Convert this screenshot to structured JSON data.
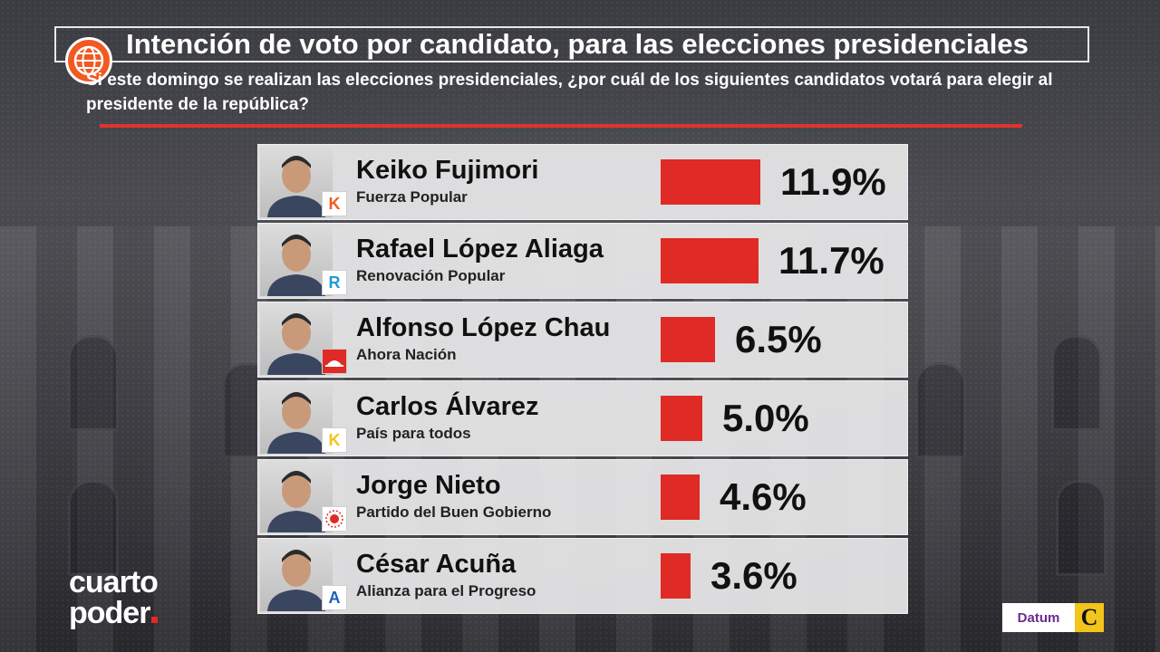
{
  "header": {
    "title": "Intención de voto por candidato, para las elecciones presidenciales",
    "question": "Si este domingo se realizan las elecciones presidenciales, ¿por cuál de los siguientes candidatos votará para elegir al presidente de la república?"
  },
  "colors": {
    "bar": "#e02a25",
    "rule": "#e0332f"
  },
  "candidates": [
    {
      "name": "Keiko Fujimori",
      "party": "Fuerza Popular",
      "value_label": "11.9%",
      "party_icon": "K",
      "party_color": "#f15a22"
    },
    {
      "name": "Rafael López Aliaga",
      "party": "Renovación Popular",
      "value_label": "11.7%",
      "party_icon": "R",
      "party_color": "#1d9bd7"
    },
    {
      "name": "Alfonso López Chau",
      "party": "Ahora Nación",
      "value_label": "6.5%",
      "party_icon": "hat-icon",
      "party_color": "#e02a25"
    },
    {
      "name": "Carlos Álvarez",
      "party": "País para todos",
      "value_label": "5.0%",
      "party_icon": "K",
      "party_color": "#f3c41a"
    },
    {
      "name": "Jorge Nieto",
      "party": "Partido del Buen Gobierno",
      "value_label": "4.6%",
      "party_icon": "sun-icon",
      "party_color": "#e02a25"
    },
    {
      "name": "César Acuña",
      "party": "Alianza para el Progreso",
      "value_label": "3.6%",
      "party_icon": "A",
      "party_color": "#1d5fb7"
    }
  ],
  "chart_data": {
    "type": "bar",
    "orientation": "horizontal",
    "title": "Intención de voto por candidato, para las elecciones presidenciales",
    "categories": [
      "Keiko Fujimori",
      "Rafael López Aliaga",
      "Alfonso López Chau",
      "Carlos Álvarez",
      "Jorge Nieto",
      "César Acuña"
    ],
    "values": [
      11.9,
      11.7,
      6.5,
      5.0,
      4.6,
      3.6
    ],
    "unit": "%"
  },
  "branding": {
    "show_logo_line1": "cuarto",
    "show_logo_line2": "poder",
    "pollster": "Datum",
    "newspaper_mark": "C"
  }
}
